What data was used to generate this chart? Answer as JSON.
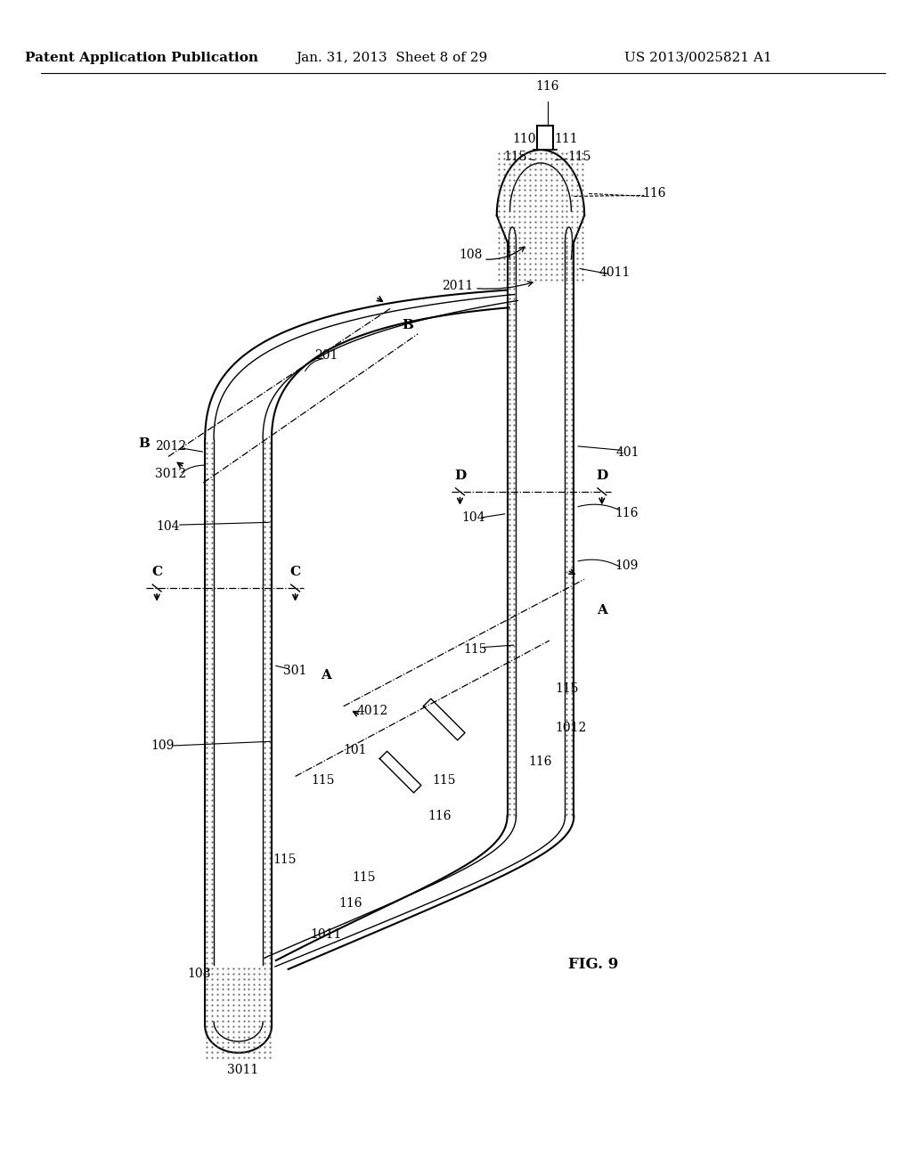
{
  "header_left": "Patent Application Publication",
  "header_center": "Jan. 31, 2013  Sheet 8 of 29",
  "header_right": "US 2013/0025821 A1",
  "figure_label": "FIG. 9",
  "background_color": "#ffffff",
  "line_color": "#000000",
  "header_fontsize": 11,
  "label_fontsize": 10,
  "fig_label_fontsize": 12
}
